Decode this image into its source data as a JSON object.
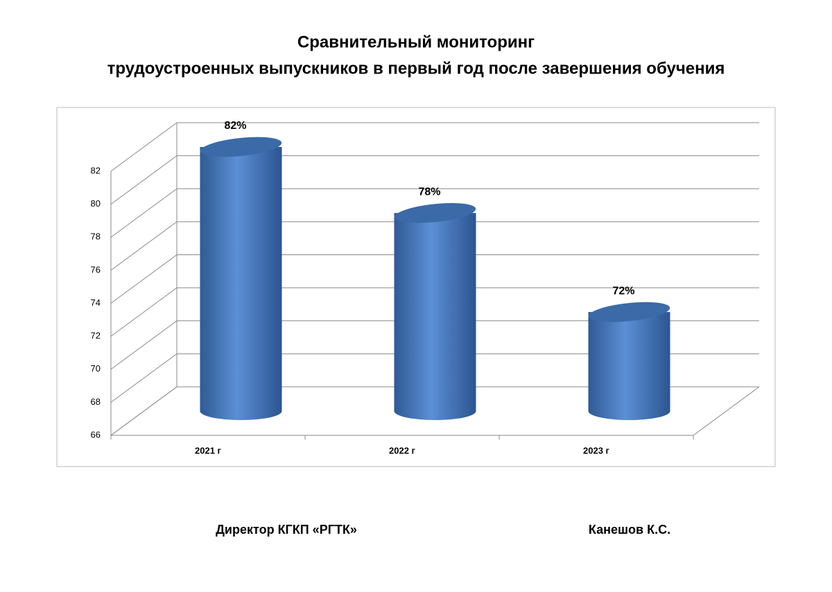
{
  "chart_data": {
    "type": "cylinder",
    "title": [
      "Сравнительный мониторинг",
      "трудоустроенных выпускников в первый год после завершения обучения"
    ],
    "categories": [
      "2021 г",
      "2022 г",
      "2023 г"
    ],
    "values": [
      82,
      78,
      72
    ],
    "value_labels": [
      "82%",
      "78%",
      "72%"
    ],
    "color": "#4f81bd",
    "ylim": [
      66,
      82
    ],
    "yticks": [
      66,
      68,
      70,
      72,
      74,
      76,
      78,
      80,
      82
    ],
    "grid": true
  },
  "footer": {
    "position": "Директор КГКП «РГТК»",
    "name": "Канешов К.С."
  }
}
